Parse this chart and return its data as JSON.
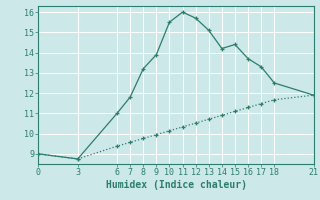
{
  "xlabel": "Humidex (Indice chaleur)",
  "bg_color": "#cce8e8",
  "line_color": "#2d7d6e",
  "grid_color": "#ffffff",
  "solid_x": [
    0,
    3,
    6,
    7,
    8,
    9,
    10,
    11,
    12,
    13,
    14,
    15,
    16,
    17,
    18,
    21
  ],
  "solid_y": [
    9.0,
    8.75,
    11.0,
    11.8,
    13.2,
    13.9,
    15.5,
    16.0,
    15.7,
    15.1,
    14.2,
    14.4,
    13.7,
    13.3,
    12.5,
    11.9
  ],
  "dashed_x": [
    0,
    3,
    6,
    7,
    8,
    9,
    10,
    11,
    12,
    13,
    14,
    15,
    16,
    17,
    18,
    21
  ],
  "dashed_y": [
    9.0,
    8.75,
    9.38,
    9.57,
    9.76,
    9.95,
    10.14,
    10.33,
    10.52,
    10.71,
    10.9,
    11.1,
    11.29,
    11.48,
    11.67,
    11.9
  ],
  "xlim": [
    0,
    21
  ],
  "ylim": [
    8.5,
    16.3
  ],
  "xticks": [
    0,
    3,
    6,
    7,
    8,
    9,
    10,
    11,
    12,
    13,
    14,
    15,
    16,
    17,
    18,
    21
  ],
  "yticks": [
    9,
    10,
    11,
    12,
    13,
    14,
    15,
    16
  ],
  "label_fontsize": 7,
  "tick_fontsize": 6
}
